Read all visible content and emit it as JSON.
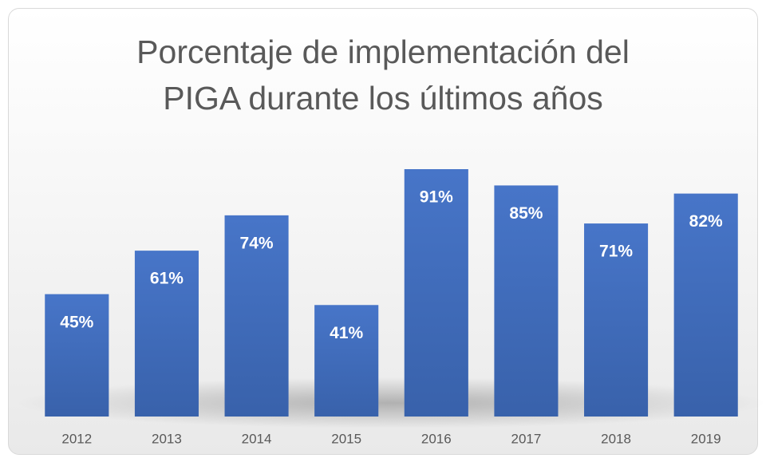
{
  "chart_data": {
    "type": "bar",
    "title": "Porcentaje de implementación del PIGA durante los últimos años",
    "categories": [
      "2012",
      "2013",
      "2014",
      "2015",
      "2016",
      "2017",
      "2018",
      "2019"
    ],
    "values": [
      45,
      61,
      74,
      41,
      91,
      85,
      71,
      82
    ],
    "value_labels": [
      "45%",
      "61%",
      "74%",
      "41%",
      "91%",
      "85%",
      "71%",
      "82%"
    ],
    "color": "#4472c4"
  }
}
